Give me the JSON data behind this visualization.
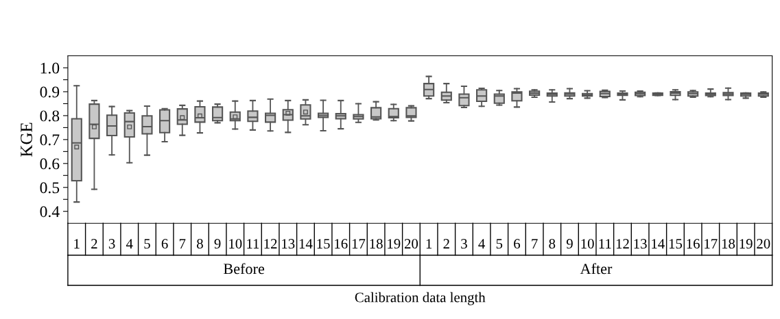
{
  "chart_data": {
    "type": "box",
    "xlabel": "Calibration data length",
    "ylabel": "KGE",
    "categories": [
      "1",
      "2",
      "3",
      "4",
      "5",
      "6",
      "7",
      "8",
      "9",
      "10",
      "11",
      "12",
      "13",
      "14",
      "15",
      "16",
      "17",
      "18",
      "19",
      "20",
      "1",
      "2",
      "3",
      "4",
      "5",
      "6",
      "7",
      "8",
      "9",
      "10",
      "11",
      "12",
      "13",
      "14",
      "15",
      "16",
      "17",
      "18",
      "19",
      "20"
    ],
    "annotations": [
      "Before",
      "After"
    ],
    "color": "#c8c8c8",
    "ylim": [
      0.35,
      1.05
    ],
    "yticks": [
      0.4,
      {
        "value": 0.45,
        "label": null
      },
      0.5,
      {
        "value": 0.55,
        "label": null
      },
      0.6,
      {
        "value": 0.65,
        "label": null
      },
      0.7,
      {
        "value": 0.75,
        "label": null
      },
      0.8,
      {
        "value": 0.85,
        "label": null
      },
      0.9,
      {
        "value": 0.95,
        "label": null
      },
      {
        "value": 1.0,
        "label": "1.0"
      }
    ],
    "grid": false,
    "boxes": [
      {
        "low": 0.439,
        "q1": 0.528,
        "median": 0.686,
        "q3": 0.787,
        "high": 0.925,
        "mean": 0.669
      },
      {
        "low": 0.492,
        "q1": 0.705,
        "median": 0.764,
        "q3": 0.848,
        "high": 0.863,
        "mean": 0.753
      },
      {
        "low": 0.636,
        "q1": 0.717,
        "median": 0.757,
        "q3": 0.802,
        "high": 0.838
      },
      {
        "low": 0.603,
        "q1": 0.711,
        "median": 0.775,
        "q3": 0.811,
        "high": 0.821,
        "mean": 0.753
      },
      {
        "low": 0.635,
        "q1": 0.724,
        "median": 0.754,
        "q3": 0.799,
        "high": 0.84
      },
      {
        "low": 0.691,
        "q1": 0.729,
        "median": 0.779,
        "q3": 0.824,
        "high": 0.829
      },
      {
        "low": 0.718,
        "q1": 0.764,
        "median": 0.782,
        "q3": 0.828,
        "high": 0.843,
        "mean": 0.792
      },
      {
        "low": 0.728,
        "q1": 0.773,
        "median": 0.791,
        "q3": 0.837,
        "high": 0.861,
        "mean": 0.799
      },
      {
        "low": 0.77,
        "q1": 0.779,
        "median": 0.792,
        "q3": 0.836,
        "high": 0.848
      },
      {
        "low": 0.744,
        "q1": 0.779,
        "median": 0.786,
        "q3": 0.815,
        "high": 0.861,
        "mean": 0.795
      },
      {
        "low": 0.74,
        "q1": 0.776,
        "median": 0.793,
        "q3": 0.819,
        "high": 0.863
      },
      {
        "low": 0.736,
        "q1": 0.773,
        "median": 0.801,
        "q3": 0.81,
        "high": 0.869
      },
      {
        "low": 0.73,
        "q1": 0.781,
        "median": 0.804,
        "q3": 0.825,
        "high": 0.863,
        "mean": 0.81
      },
      {
        "low": 0.762,
        "q1": 0.786,
        "median": 0.799,
        "q3": 0.845,
        "high": 0.866,
        "mean": 0.815
      },
      {
        "low": 0.737,
        "q1": 0.793,
        "median": 0.801,
        "q3": 0.81,
        "high": 0.864
      },
      {
        "low": 0.745,
        "q1": 0.787,
        "median": 0.799,
        "q3": 0.808,
        "high": 0.863
      },
      {
        "low": 0.772,
        "q1": 0.786,
        "median": 0.796,
        "q3": 0.804,
        "high": 0.85
      },
      {
        "low": 0.782,
        "q1": 0.787,
        "median": 0.795,
        "q3": 0.833,
        "high": 0.858
      },
      {
        "low": 0.779,
        "q1": 0.791,
        "median": 0.796,
        "q3": 0.829,
        "high": 0.847
      },
      {
        "low": 0.778,
        "q1": 0.793,
        "median": 0.799,
        "q3": 0.833,
        "high": 0.841
      },
      {
        "low": 0.871,
        "q1": 0.882,
        "median": 0.909,
        "q3": 0.934,
        "high": 0.964
      },
      {
        "low": 0.854,
        "q1": 0.865,
        "median": 0.882,
        "q3": 0.898,
        "high": 0.934
      },
      {
        "low": 0.834,
        "q1": 0.842,
        "median": 0.875,
        "q3": 0.89,
        "high": 0.923
      },
      {
        "low": 0.839,
        "q1": 0.86,
        "median": 0.882,
        "q3": 0.908,
        "high": 0.914
      },
      {
        "low": 0.844,
        "q1": 0.852,
        "median": 0.882,
        "q3": 0.89,
        "high": 0.905
      },
      {
        "low": 0.836,
        "q1": 0.862,
        "median": 0.894,
        "q3": 0.899,
        "high": 0.913
      },
      {
        "low": 0.877,
        "q1": 0.886,
        "median": 0.894,
        "q3": 0.902,
        "high": 0.908
      },
      {
        "low": 0.857,
        "q1": 0.882,
        "median": 0.889,
        "q3": 0.894,
        "high": 0.908
      },
      {
        "low": 0.871,
        "q1": 0.882,
        "median": 0.89,
        "q3": 0.895,
        "high": 0.913
      },
      {
        "low": 0.873,
        "q1": 0.882,
        "median": 0.886,
        "q3": 0.892,
        "high": 0.904
      },
      {
        "low": 0.876,
        "q1": 0.88,
        "median": 0.892,
        "q3": 0.901,
        "high": 0.906
      },
      {
        "low": 0.866,
        "q1": 0.885,
        "median": 0.889,
        "q3": 0.894,
        "high": 0.903
      },
      {
        "low": 0.879,
        "q1": 0.884,
        "median": 0.892,
        "q3": 0.898,
        "high": 0.903
      },
      {
        "low": 0.884,
        "q1": 0.885,
        "median": 0.889,
        "q3": 0.894,
        "high": 0.895
      },
      {
        "low": 0.867,
        "q1": 0.885,
        "median": 0.894,
        "q3": 0.9,
        "high": 0.908
      },
      {
        "low": 0.877,
        "q1": 0.882,
        "median": 0.892,
        "q3": 0.899,
        "high": 0.905
      },
      {
        "low": 0.879,
        "q1": 0.884,
        "median": 0.889,
        "q3": 0.894,
        "high": 0.911
      },
      {
        "low": 0.867,
        "q1": 0.884,
        "median": 0.89,
        "q3": 0.896,
        "high": 0.915
      },
      {
        "low": 0.873,
        "q1": 0.882,
        "median": 0.889,
        "q3": 0.894,
        "high": 0.895
      },
      {
        "low": 0.877,
        "q1": 0.882,
        "median": 0.89,
        "q3": 0.894,
        "high": 0.899
      }
    ]
  }
}
